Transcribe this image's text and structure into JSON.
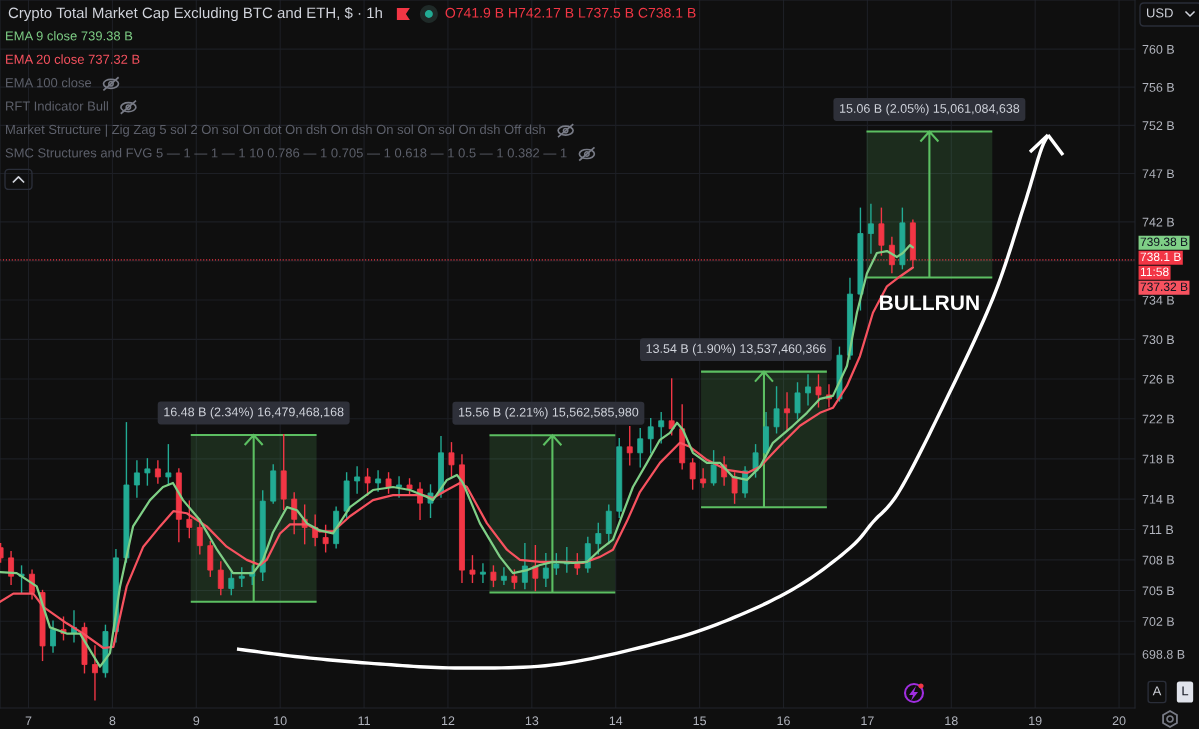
{
  "chart_data": {
    "type": "candlestick",
    "title": "Crypto Total Market Cap Excluding BTC and ETH, $ · 1h",
    "subtitle": "O741.9 B H742.17 B L737.5 B C738.1 B",
    "x": [
      6.667,
      6.792,
      6.917,
      7.042,
      7.167,
      7.292,
      7.417,
      7.542,
      7.667,
      7.792,
      7.917,
      8.042,
      8.167,
      8.292,
      8.417,
      8.542,
      8.667,
      8.792,
      8.917,
      9.042,
      9.167,
      9.292,
      9.417,
      9.542,
      9.667,
      9.792,
      9.917,
      10.042,
      10.167,
      10.292,
      10.417,
      10.542,
      10.667,
      10.792,
      10.917,
      11.042,
      11.167,
      11.292,
      11.417,
      11.542,
      11.667,
      11.792,
      11.917,
      12.042,
      12.167,
      12.292,
      12.417,
      12.542,
      12.667,
      12.792,
      12.917,
      13.042,
      13.167,
      13.292,
      13.417,
      13.542,
      13.667,
      13.792,
      13.917,
      14.042,
      14.167,
      14.292,
      14.417,
      14.542,
      14.667,
      14.792,
      14.917,
      15.042,
      15.167,
      15.292,
      15.417,
      15.542,
      15.667,
      15.792,
      15.917,
      16.042,
      16.167,
      16.292,
      16.417,
      16.542,
      16.667,
      16.792,
      16.917,
      17.042,
      17.167,
      17.292,
      17.417,
      17.542
    ],
    "ohlc": [
      [
        709.2,
        709.6,
        707.8,
        708.2
      ],
      [
        708.2,
        708.8,
        705.6,
        706.4
      ],
      [
        706.4,
        707.4,
        704.8,
        706.6
      ],
      [
        706.6,
        707.0,
        704.2,
        704.8
      ],
      [
        704.8,
        705.0,
        698.2,
        699.6
      ],
      [
        699.6,
        702.0,
        699.0,
        701.2
      ],
      [
        701.2,
        702.4,
        700.2,
        700.8
      ],
      [
        700.8,
        703.0,
        700.0,
        701.4
      ],
      [
        701.4,
        701.8,
        697.0,
        697.8
      ],
      [
        697.8,
        699.6,
        694.4,
        697.0
      ],
      [
        697.0,
        701.6,
        696.6,
        701.0
      ],
      [
        701.0,
        709.0,
        700.0,
        708.2
      ],
      [
        708.2,
        721.6,
        707.8,
        715.4
      ],
      [
        715.4,
        717.8,
        714.2,
        716.6
      ],
      [
        716.6,
        718.0,
        715.4,
        717.0
      ],
      [
        717.0,
        717.8,
        715.6,
        716.2
      ],
      [
        716.2,
        719.4,
        715.4,
        716.6
      ],
      [
        716.6,
        717.0,
        709.8,
        712.0
      ],
      [
        712.0,
        713.8,
        710.2,
        711.2
      ],
      [
        711.2,
        712.0,
        708.6,
        709.4
      ],
      [
        709.4,
        709.8,
        706.4,
        707.0
      ],
      [
        707.0,
        707.8,
        704.6,
        705.2
      ],
      [
        705.2,
        706.8,
        704.6,
        706.2
      ],
      [
        706.2,
        707.2,
        705.4,
        706.4
      ],
      [
        706.4,
        707.4,
        705.6,
        706.8
      ],
      [
        706.8,
        714.8,
        706.0,
        713.8
      ],
      [
        713.8,
        717.4,
        713.6,
        716.8
      ],
      [
        716.8,
        720.4,
        713.0,
        714.0
      ],
      [
        714.0,
        714.6,
        710.6,
        712.0
      ],
      [
        712.0,
        713.4,
        709.6,
        711.2
      ],
      [
        711.2,
        712.4,
        709.4,
        710.2
      ],
      [
        710.2,
        711.4,
        708.8,
        709.6
      ],
      [
        709.6,
        713.2,
        709.2,
        712.8
      ],
      [
        712.8,
        716.6,
        712.2,
        715.8
      ],
      [
        715.8,
        717.2,
        714.6,
        716.2
      ],
      [
        716.2,
        717.0,
        714.4,
        715.6
      ],
      [
        715.6,
        716.8,
        714.8,
        716.0
      ],
      [
        716.0,
        716.6,
        714.6,
        715.2
      ],
      [
        715.2,
        716.2,
        714.2,
        715.4
      ],
      [
        715.4,
        716.0,
        714.4,
        715.0
      ],
      [
        715.0,
        715.6,
        712.0,
        713.6
      ],
      [
        713.6,
        715.4,
        712.2,
        714.6
      ],
      [
        714.6,
        720.2,
        714.2,
        718.6
      ],
      [
        718.6,
        719.6,
        716.2,
        717.4
      ],
      [
        717.4,
        718.4,
        705.8,
        707.0
      ],
      [
        707.0,
        708.4,
        705.8,
        706.6
      ],
      [
        706.6,
        707.6,
        705.8,
        706.8
      ],
      [
        706.8,
        707.4,
        705.4,
        706.0
      ],
      [
        706.0,
        707.2,
        705.6,
        706.4
      ],
      [
        706.4,
        707.0,
        705.2,
        705.8
      ],
      [
        705.8,
        709.6,
        705.2,
        707.4
      ],
      [
        707.4,
        709.4,
        705.0,
        706.2
      ],
      [
        706.2,
        708.6,
        705.4,
        707.2
      ],
      [
        707.2,
        708.6,
        706.6,
        707.6
      ],
      [
        707.6,
        709.2,
        706.8,
        707.8
      ],
      [
        707.8,
        708.6,
        706.6,
        707.2
      ],
      [
        707.2,
        710.2,
        706.8,
        709.6
      ],
      [
        709.6,
        711.6,
        708.6,
        710.6
      ],
      [
        710.6,
        713.4,
        709.6,
        712.8
      ],
      [
        712.8,
        720.0,
        712.2,
        719.2
      ],
      [
        719.2,
        721.2,
        717.4,
        718.6
      ],
      [
        718.6,
        721.0,
        717.2,
        720.0
      ],
      [
        720.0,
        722.0,
        718.6,
        721.2
      ],
      [
        721.2,
        722.6,
        719.6,
        721.8
      ],
      [
        721.8,
        726.0,
        720.4,
        721.0
      ],
      [
        721.0,
        723.4,
        717.0,
        717.6
      ],
      [
        717.6,
        718.0,
        715.0,
        716.0
      ],
      [
        716.0,
        717.0,
        715.2,
        715.6
      ],
      [
        715.6,
        718.8,
        715.4,
        717.4
      ],
      [
        717.4,
        718.2,
        715.4,
        716.2
      ],
      [
        716.2,
        716.6,
        713.6,
        714.6
      ],
      [
        714.6,
        717.2,
        714.2,
        716.8
      ],
      [
        716.8,
        719.4,
        716.2,
        718.6
      ],
      [
        718.6,
        722.6,
        718.2,
        721.2
      ],
      [
        721.2,
        725.2,
        720.6,
        723.0
      ],
      [
        723.0,
        724.6,
        720.8,
        722.6
      ],
      [
        722.6,
        725.6,
        722.0,
        724.6
      ],
      [
        724.6,
        726.4,
        723.4,
        725.2
      ],
      [
        725.2,
        726.4,
        723.2,
        724.4
      ],
      [
        724.4,
        725.4,
        723.2,
        724.0
      ],
      [
        724.0,
        729.2,
        723.8,
        728.4
      ],
      [
        728.4,
        736.2,
        728.0,
        734.6
      ],
      [
        734.6,
        743.4,
        733.0,
        740.8
      ],
      [
        740.8,
        743.8,
        738.8,
        741.8
      ],
      [
        741.8,
        743.4,
        738.6,
        739.6
      ],
      [
        739.6,
        740.4,
        736.8,
        737.6
      ],
      [
        737.6,
        743.4,
        737.2,
        741.9
      ],
      [
        741.9,
        742.17,
        737.5,
        738.1
      ]
    ],
    "colors": [
      "#f23645",
      "#f23645",
      "#22ab94",
      "#f23645",
      "#f23645",
      "#22ab94",
      "#f23645",
      "#22ab94",
      "#f23645",
      "#f23645",
      "#22ab94",
      "#22ab94",
      "#22ab94",
      "#22ab94",
      "#22ab94",
      "#f23645",
      "#22ab94",
      "#f23645",
      "#f23645",
      "#f23645",
      "#f23645",
      "#f23645",
      "#22ab94",
      "#22ab94",
      "#22ab94",
      "#22ab94",
      "#22ab94",
      "#f23645",
      "#f23645",
      "#f23645",
      "#f23645",
      "#f23645",
      "#22ab94",
      "#22ab94",
      "#22ab94",
      "#f23645",
      "#22ab94",
      "#f23645",
      "#22ab94",
      "#f23645",
      "#f23645",
      "#22ab94",
      "#22ab94",
      "#f23645",
      "#f23645",
      "#f23645",
      "#22ab94",
      "#f23645",
      "#22ab94",
      "#f23645",
      "#22ab94",
      "#f23645",
      "#22ab94",
      "#22ab94",
      "#22ab94",
      "#f23645",
      "#22ab94",
      "#22ab94",
      "#22ab94",
      "#22ab94",
      "#f23645",
      "#22ab94",
      "#22ab94",
      "#22ab94",
      "#f23645",
      "#f23645",
      "#f23645",
      "#f23645",
      "#22ab94",
      "#f23645",
      "#f23645",
      "#22ab94",
      "#22ab94",
      "#22ab94",
      "#22ab94",
      "#f23645",
      "#22ab94",
      "#22ab94",
      "#f23645",
      "#f23645",
      "#22ab94",
      "#22ab94",
      "#22ab94",
      "#22ab94",
      "#f23645",
      "#f23645",
      "#22ab94",
      "#f23645"
    ],
    "series": [
      {
        "name": "EMA 9 close 739.38 B",
        "type": "line",
        "color": "#7fcf86",
        "x": [
          6.66,
          6.859,
          7.098,
          7.256,
          7.455,
          7.614,
          7.852,
          7.971,
          8.091,
          8.246,
          8.448,
          8.603,
          8.722,
          8.842,
          9.044,
          9.247,
          9.437,
          9.676,
          9.795,
          9.914,
          10.081,
          10.2,
          10.32,
          10.474,
          10.629,
          10.832,
          11.106,
          11.345,
          11.547,
          11.75,
          11.821,
          11.988,
          12.107,
          12.179,
          12.381,
          12.62,
          12.775,
          12.942,
          13.097,
          13.251,
          13.49,
          13.657,
          13.812,
          13.967,
          14.086,
          14.205,
          14.372,
          14.527,
          14.646,
          14.73,
          14.801,
          14.92,
          15.087,
          15.242,
          15.397,
          15.564,
          15.719,
          15.874,
          16.112,
          16.279,
          16.434,
          16.589,
          16.756,
          16.875,
          16.994,
          17.113,
          17.233,
          17.352,
          17.423,
          17.507,
          17.542
        ],
        "values": [
          706.8,
          706.7,
          705.4,
          701.4,
          700.8,
          700.8,
          697.6,
          698.9,
          705.4,
          711.3,
          713.9,
          715.2,
          715.6,
          713.9,
          711.9,
          709.0,
          706.7,
          706.7,
          708.0,
          710.7,
          713.2,
          712.9,
          711.6,
          710.9,
          710.6,
          713.2,
          714.9,
          715.2,
          714.9,
          714.2,
          713.9,
          715.9,
          716.4,
          715.6,
          711.6,
          708.3,
          706.7,
          707.0,
          707.5,
          707.8,
          707.7,
          707.8,
          709.0,
          710.0,
          712.6,
          715.2,
          717.6,
          719.9,
          720.6,
          721.6,
          720.9,
          718.6,
          717.6,
          717.6,
          716.2,
          715.9,
          717.2,
          719.6,
          721.3,
          722.6,
          724.0,
          724.3,
          727.3,
          732.7,
          736.7,
          738.8,
          739.0,
          738.4,
          738.8,
          739.6,
          739.38
        ]
      },
      {
        "name": "EMA 20 close 737.32 B",
        "type": "line",
        "color": "#f7525f",
        "x": [
          6.66,
          6.819,
          7.057,
          7.176,
          7.455,
          7.653,
          7.892,
          8.011,
          8.17,
          8.368,
          8.567,
          8.726,
          8.886,
          9.124,
          9.362,
          9.601,
          9.759,
          9.839,
          9.998,
          10.117,
          10.316,
          10.474,
          10.629,
          10.832,
          11.106,
          11.345,
          11.702,
          11.821,
          11.988,
          12.143,
          12.226,
          12.465,
          12.703,
          12.858,
          13.097,
          13.418,
          13.609,
          13.812,
          13.967,
          14.133,
          14.288,
          14.527,
          14.765,
          14.884,
          15.087,
          15.325,
          15.564,
          15.719,
          15.957,
          16.196,
          16.434,
          16.589,
          16.756,
          16.911,
          17.066,
          17.233,
          17.388,
          17.542
        ],
        "values": [
          703.9,
          704.7,
          704.7,
          703.4,
          701.8,
          700.8,
          699.4,
          699.5,
          705.4,
          709.3,
          711.3,
          712.8,
          712.6,
          711.3,
          709.3,
          708.0,
          707.5,
          708.0,
          710.6,
          711.5,
          711.5,
          710.8,
          710.8,
          712.3,
          713.9,
          714.4,
          714.4,
          714.1,
          714.9,
          715.6,
          715.2,
          711.6,
          709.0,
          708.0,
          707.8,
          707.8,
          707.7,
          708.3,
          709.0,
          711.8,
          714.7,
          717.6,
          719.6,
          719.2,
          717.9,
          716.9,
          716.6,
          717.2,
          719.3,
          721.3,
          722.6,
          723.1,
          725.3,
          728.3,
          732.7,
          735.4,
          736.4,
          737.32
        ]
      },
      {
        "type": "bar",
        "color": "#5cbf62",
        "x": [
          9.684,
          13.245,
          15.767,
          17.739
        ],
        "base": [
          703.9,
          704.8,
          713.2,
          736.3
        ],
        "values": [
          16.48,
          15.56,
          13.54,
          15.06
        ],
        "value_labels": [
          "16.48 B (2.34%) 16,479,468,168",
          "15.56 B (2.21%) 15,562,585,980",
          "13.54 B (1.90%) 13,537,460,366",
          "15.06 B (2.05%) 15,061,084,638"
        ]
      }
    ],
    "annotations": [
      "EMA 100 close",
      "RFT Indicator Bull",
      "Market Structure | Zig Zag 5 sol 2 On sol On dot On dsh On dsh On sol On sol On dsh Off dsh",
      "SMC Structures and FVG 5 — 1 — 1 — 1 10 0.786 — 1 0.705 — 1 0.618 — 1 0.5 — 1 0.382 — 1",
      {
        "text": "BULLRUN",
        "x": 17.739,
        "y": 736.3
      },
      "739.38 B",
      "737.32 B",
      "11:58",
      "USD",
      "A",
      "L"
    ],
    "ref_lines": [
      {
        "axis": "y",
        "value": 738.1,
        "label": "738.1 B",
        "color": "#f23645",
        "line_style": "dotted"
      }
    ],
    "xlim": [
      6.66,
      20.19
    ],
    "xticks": [
      7,
      8,
      9,
      10,
      11,
      12,
      13,
      14,
      15,
      16,
      17,
      18,
      19,
      20
    ],
    "ylim": [
      693.6,
      765.2
    ],
    "yticks": [
      {
        "value": 760,
        "label": "760 B"
      },
      {
        "value": 756,
        "label": "756 B"
      },
      {
        "value": 752,
        "label": "752 B"
      },
      {
        "value": 747,
        "label": "747 B"
      },
      {
        "value": 742,
        "label": "742 B"
      },
      {
        "value": 738,
        "label": null
      },
      {
        "value": 734,
        "label": "734 B"
      },
      {
        "value": 730,
        "label": "730 B"
      },
      {
        "value": 726,
        "label": "726 B"
      },
      {
        "value": 722,
        "label": "722 B"
      },
      {
        "value": 718,
        "label": "718 B"
      },
      {
        "value": 714,
        "label": "714 B"
      },
      {
        "value": 711,
        "label": "711 B"
      },
      {
        "value": 708,
        "label": "708 B"
      },
      {
        "value": 705,
        "label": "705 B"
      },
      {
        "value": 702,
        "label": "702 B"
      },
      {
        "value": 698.8,
        "label": "698.8 B"
      }
    ],
    "log": true,
    "grid": true,
    "legend": "top left"
  }
}
